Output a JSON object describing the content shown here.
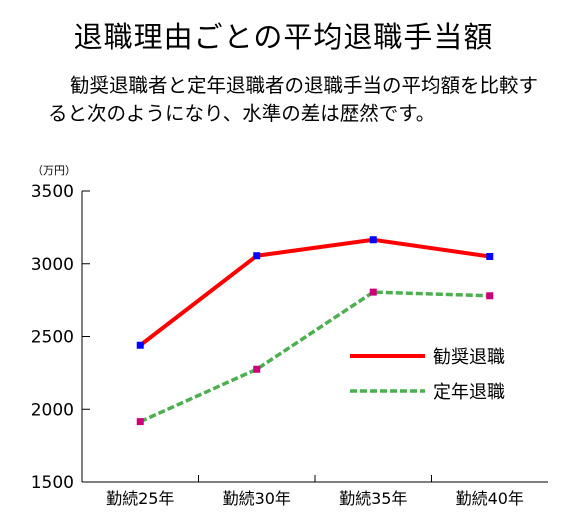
{
  "page": {
    "title": "退職理由ごとの平均退職手当額",
    "paragraph_line1": "勧奨退職者と定年退職者の退職手当の平均額を比較す",
    "paragraph_line2": "ると次のようになり、水準の差は歴然です。"
  },
  "chart_data": {
    "type": "line",
    "unit_label": "（万円）",
    "categories": [
      "勤続25年",
      "勤続30年",
      "勤続35年",
      "勤続40年"
    ],
    "ylim": [
      1500,
      3500
    ],
    "yticks": [
      1500,
      2000,
      2500,
      3000,
      3500
    ],
    "grid": false,
    "legend_position": "right-center",
    "series": [
      {
        "name": "勧奨退職",
        "values": [
          2440,
          3055,
          3165,
          3050
        ],
        "line_color": "#ff0000",
        "marker_color": "#0000ff",
        "dash": false
      },
      {
        "name": "定年退職",
        "values": [
          1915,
          2275,
          2805,
          2780
        ],
        "line_color": "#4caf50",
        "marker_color": "#cc0077",
        "dash": true
      }
    ]
  }
}
